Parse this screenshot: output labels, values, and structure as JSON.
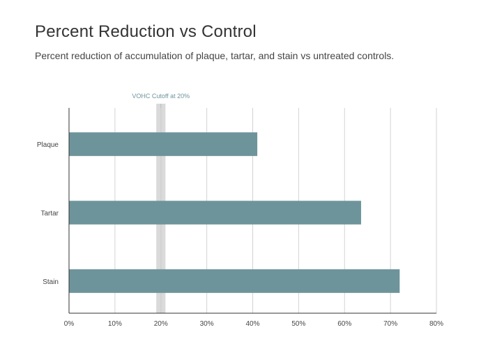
{
  "chart_data": {
    "type": "bar",
    "orientation": "horizontal",
    "title": "Percent Reduction vs Control",
    "subtitle": "Percent reduction of accumulation of plaque, tartar, and stain vs untreated controls.",
    "xlabel": "",
    "ylabel": "",
    "categories": [
      "Plaque",
      "Tartar",
      "Stain"
    ],
    "values": [
      41,
      63.6,
      72
    ],
    "xlim": [
      0,
      80
    ],
    "x_ticks": [
      0,
      10,
      20,
      30,
      40,
      50,
      60,
      70,
      80
    ],
    "x_tick_labels": [
      "0%",
      "10%",
      "20%",
      "30%",
      "40%",
      "50%",
      "60%",
      "70%",
      "80%"
    ],
    "grid": true,
    "reference_band": {
      "label": "VOHC Cutoff at 20%",
      "value": 20,
      "range": [
        19,
        21
      ]
    },
    "colors": {
      "bar": "#6e949b",
      "band": "#dadada",
      "band_line": "#b9b9b9",
      "band_label": "#6e949b",
      "grid": "#d3d3d3",
      "axis": "#333333",
      "text": "#444444"
    }
  }
}
